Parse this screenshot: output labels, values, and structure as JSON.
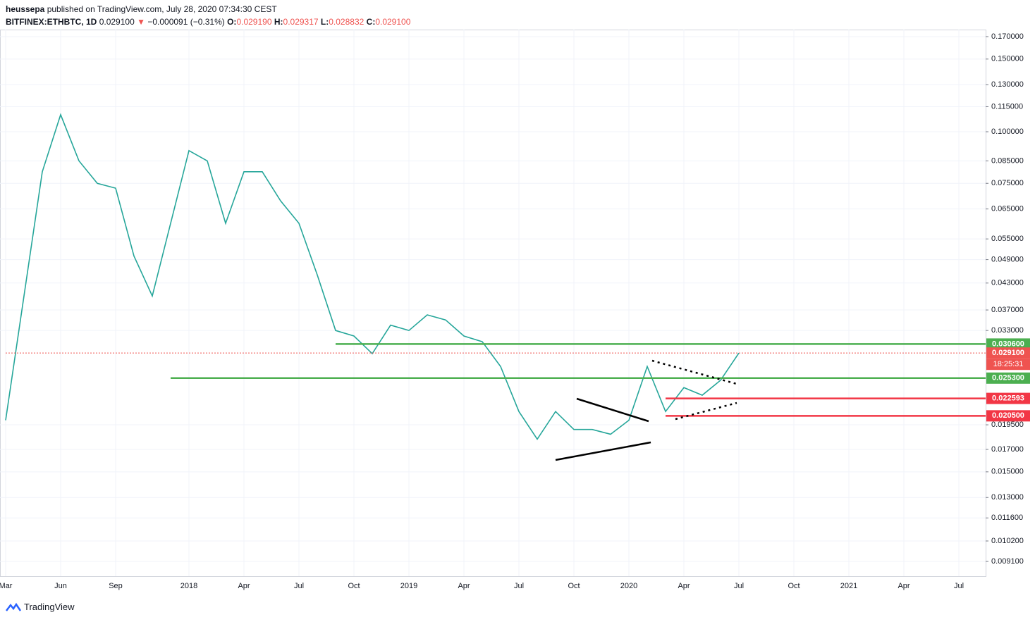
{
  "header": {
    "author": "heussepa",
    "published": "published on TradingView.com, July 28, 2020 07:34:30 CEST",
    "symbol": "BITFINEX:ETHBTC, 1D",
    "last": "0.029100",
    "arrow": "▼",
    "change": "−0.000091 (−0.31%)",
    "o_label": "O:",
    "o": "0.029190",
    "h_label": "H:",
    "h": "0.029317",
    "l_label": "L:",
    "l": "0.028832",
    "c_label": "C:",
    "c": "0.029100"
  },
  "footer": {
    "brand": "TradingView"
  },
  "chart_data": {
    "type": "line",
    "log_scale": true,
    "grid": true,
    "countdown": "18:25:31",
    "x": [
      "2017-03",
      "2017-04",
      "2017-05",
      "2017-06",
      "2017-07",
      "2017-08",
      "2017-09",
      "2017-10",
      "2017-11",
      "2017-12",
      "2018-01",
      "2018-02",
      "2018-03",
      "2018-04",
      "2018-05",
      "2018-06",
      "2018-07",
      "2018-08",
      "2018-09",
      "2018-10",
      "2018-11",
      "2018-12",
      "2019-01",
      "2019-02",
      "2019-03",
      "2019-04",
      "2019-05",
      "2019-06",
      "2019-07",
      "2019-08",
      "2019-09",
      "2019-10",
      "2019-11",
      "2019-12",
      "2020-01",
      "2020-02",
      "2020-03",
      "2020-04",
      "2020-05",
      "2020-06",
      "2020-07"
    ],
    "series": [
      {
        "name": "ETHBTC",
        "color": "#26a69a",
        "values": [
          0.02,
          0.04,
          0.08,
          0.11,
          0.085,
          0.075,
          0.073,
          0.05,
          0.04,
          0.06,
          0.09,
          0.085,
          0.06,
          0.08,
          0.08,
          0.068,
          0.06,
          0.045,
          0.033,
          0.032,
          0.029,
          0.034,
          0.033,
          0.036,
          0.035,
          0.032,
          0.031,
          0.027,
          0.021,
          0.018,
          0.021,
          0.019,
          0.019,
          0.0185,
          0.02,
          0.027,
          0.021,
          0.024,
          0.023,
          0.025,
          0.0291
        ]
      }
    ],
    "xlim": [
      "2017-03",
      "2021-08"
    ],
    "xticks": [
      {
        "value": "2017-03",
        "label": "Mar"
      },
      {
        "value": "2017-06",
        "label": "Jun"
      },
      {
        "value": "2017-09",
        "label": "Sep"
      },
      {
        "value": "2018-01",
        "label": "2018"
      },
      {
        "value": "2018-04",
        "label": "Apr"
      },
      {
        "value": "2018-07",
        "label": "Jul"
      },
      {
        "value": "2018-10",
        "label": "Oct"
      },
      {
        "value": "2019-01",
        "label": "2019"
      },
      {
        "value": "2019-04",
        "label": "Apr"
      },
      {
        "value": "2019-07",
        "label": "Jul"
      },
      {
        "value": "2019-10",
        "label": "Oct"
      },
      {
        "value": "2020-01",
        "label": "2020"
      },
      {
        "value": "2020-04",
        "label": "Apr"
      },
      {
        "value": "2020-07",
        "label": "Jul"
      },
      {
        "value": "2020-10",
        "label": "Oct"
      },
      {
        "value": "2021-01",
        "label": "2021"
      },
      {
        "value": "2021-04",
        "label": "Apr"
      },
      {
        "value": "2021-07",
        "label": "Jul"
      }
    ],
    "ylim": [
      0.00838,
      0.1768
    ],
    "yticks": [
      {
        "value": 0.17,
        "label": "0.170000"
      },
      {
        "value": 0.15,
        "label": "0.150000"
      },
      {
        "value": 0.13,
        "label": "0.130000"
      },
      {
        "value": 0.115,
        "label": "0.115000"
      },
      {
        "value": 0.1,
        "label": "0.100000"
      },
      {
        "value": 0.085,
        "label": "0.085000"
      },
      {
        "value": 0.075,
        "label": "0.075000"
      },
      {
        "value": 0.065,
        "label": "0.065000"
      },
      {
        "value": 0.055,
        "label": "0.055000"
      },
      {
        "value": 0.049,
        "label": "0.049000"
      },
      {
        "value": 0.043,
        "label": "0.043000"
      },
      {
        "value": 0.037,
        "label": "0.037000"
      },
      {
        "value": 0.033,
        "label": "0.033000"
      },
      {
        "value": 0.0195,
        "label": "0.019500"
      },
      {
        "value": 0.017,
        "label": "0.017000"
      },
      {
        "value": 0.015,
        "label": "0.015000"
      },
      {
        "value": 0.013,
        "label": "0.013000"
      },
      {
        "value": 0.0116,
        "label": "0.011600"
      },
      {
        "value": 0.0102,
        "label": "0.010200"
      },
      {
        "value": 0.0091,
        "label": "0.009100"
      }
    ],
    "levels": [
      {
        "value": 0.0306,
        "label": "0.030600",
        "color": "#4caf50",
        "from": "2018-09",
        "style": "solid"
      },
      {
        "value": 0.0291,
        "label": "0.029100",
        "color": "#ef5350",
        "from": "2017-03",
        "style": "dotted"
      },
      {
        "value": 0.0253,
        "label": "0.025300",
        "color": "#4caf50",
        "from": "2017-12",
        "style": "solid"
      },
      {
        "value": 0.022593,
        "label": "0.022593",
        "color": "#f23645",
        "from": "2020-03",
        "style": "solid"
      },
      {
        "value": 0.0205,
        "label": "0.020500",
        "color": "#f23645",
        "from": "2020-03",
        "style": "solid"
      }
    ]
  }
}
